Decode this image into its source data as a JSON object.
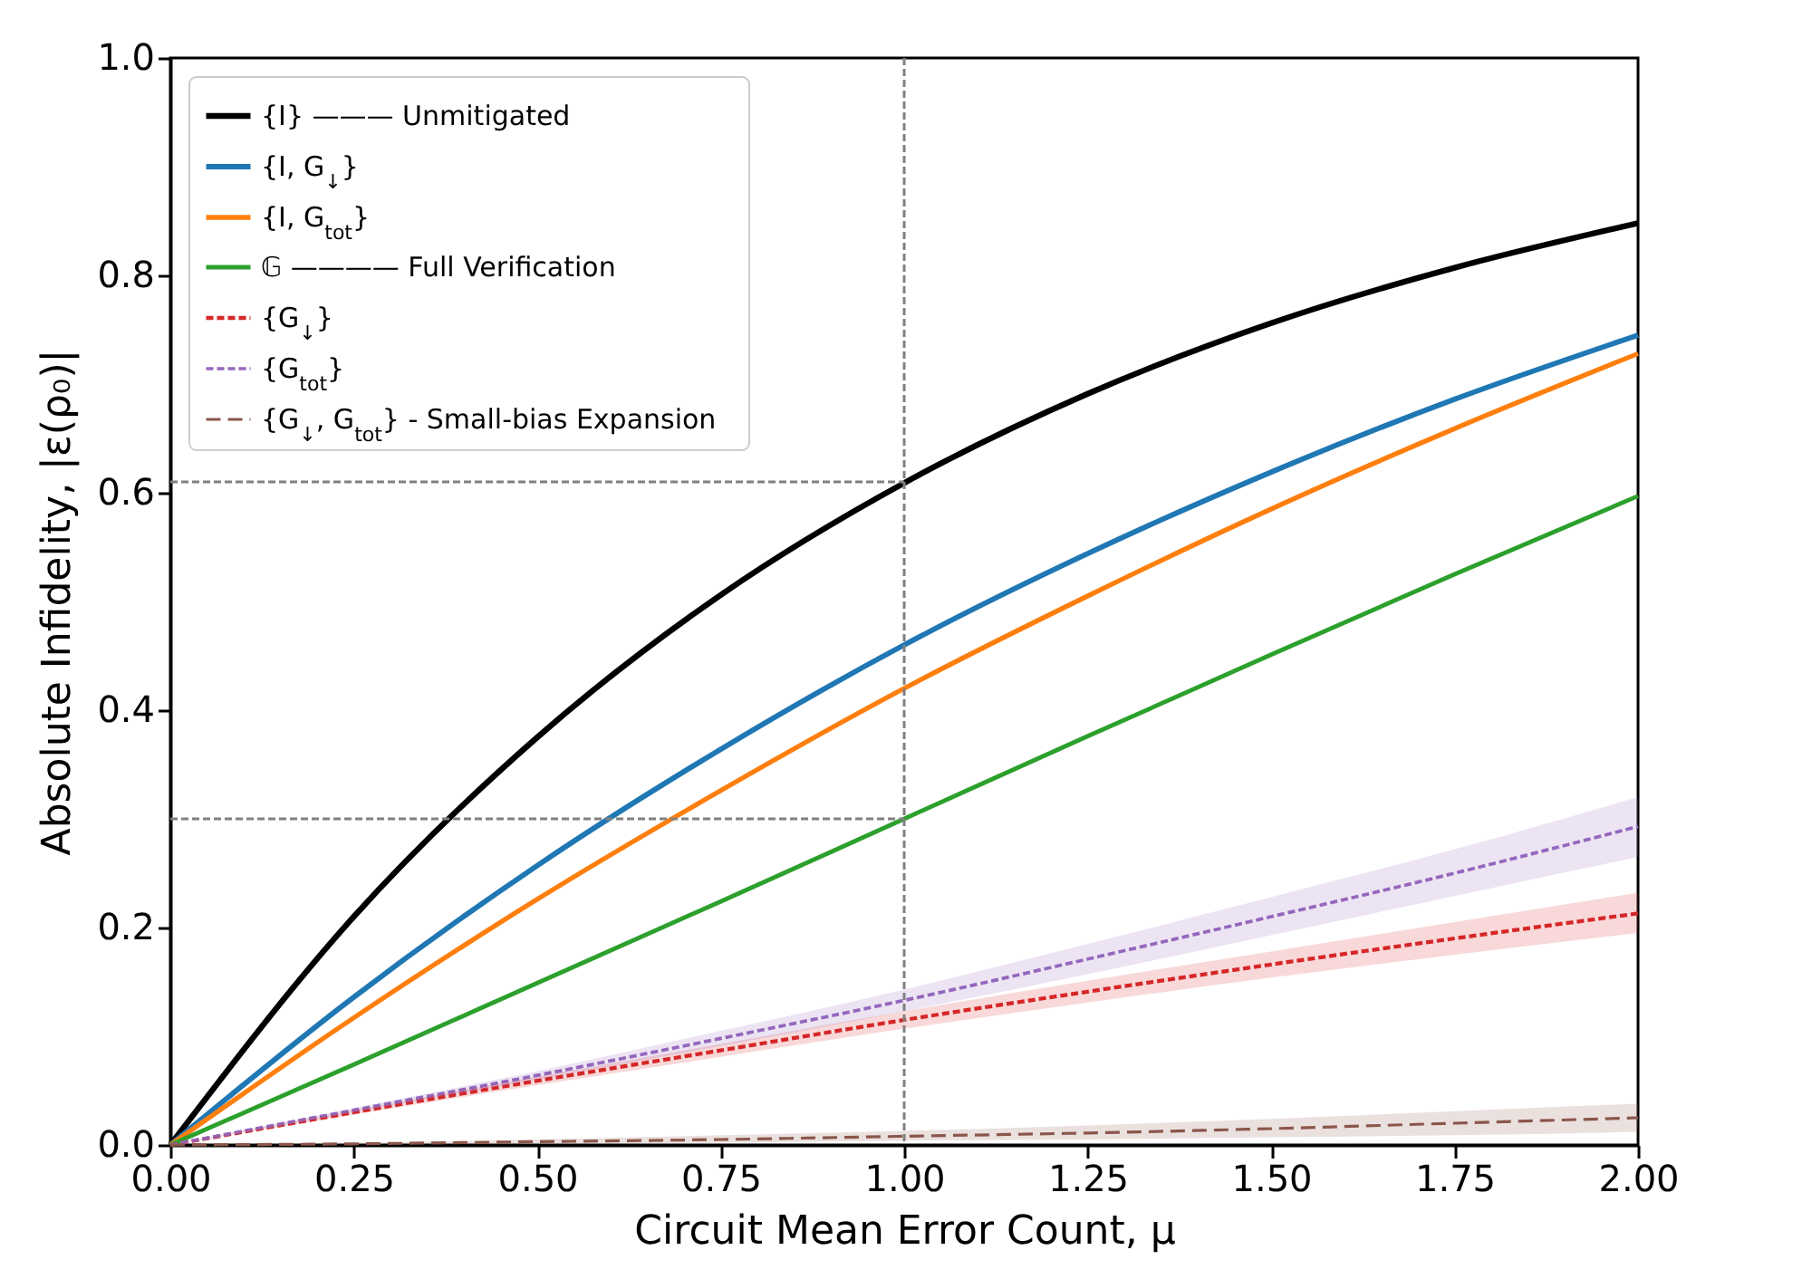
{
  "chart_data": {
    "type": "line",
    "xlabel": "Circuit Mean Error Count, μ",
    "ylabel": "Absolute Infidelity, |ε(ρ₀)|",
    "x": [
      0,
      0.25,
      0.5,
      0.75,
      1,
      1.25,
      1.5,
      1.75,
      2
    ],
    "series": [
      {
        "name": "{I}   ——— Unmitigated",
        "color": "#000000",
        "line_style": "solid",
        "values": [
          0,
          0.21,
          0.375,
          0.506,
          0.609,
          0.691,
          0.756,
          0.807,
          0.848
        ]
      },
      {
        "name": "{I, G$_{↓}$}",
        "color": "#1f77b4",
        "line_style": "solid",
        "values": [
          0,
          0.136,
          0.257,
          0.364,
          0.46,
          0.544,
          0.619,
          0.686,
          0.745
        ]
      },
      {
        "name": "{I, G$_{tot}$}",
        "color": "#ff7f0e",
        "line_style": "solid",
        "values": [
          0,
          0.117,
          0.226,
          0.326,
          0.42,
          0.505,
          0.585,
          0.659,
          0.728
        ]
      },
      {
        "name": "𝔾   ———— Full Verification",
        "color": "#2ca02c",
        "line_style": "solid",
        "values": [
          0,
          0.074,
          0.149,
          0.224,
          0.3,
          0.376,
          0.451,
          0.525,
          0.597
        ]
      },
      {
        "name": "{G$_{↓}$}",
        "color": "#d62728",
        "line_style": "dotted",
        "values": [
          0,
          0.03,
          0.059,
          0.087,
          0.115,
          0.141,
          0.166,
          0.19,
          0.213
        ],
        "lower": [
          0,
          0.028,
          0.055,
          0.081,
          0.107,
          0.131,
          0.154,
          0.175,
          0.195
        ],
        "upper": [
          0,
          0.032,
          0.063,
          0.093,
          0.123,
          0.151,
          0.178,
          0.205,
          0.232
        ]
      },
      {
        "name": "{G$_{tot}$}",
        "color": "#9467bd",
        "line_style": "dotted",
        "values": [
          0,
          0.032,
          0.064,
          0.098,
          0.133,
          0.171,
          0.21,
          0.25,
          0.293
        ],
        "lower": [
          0,
          0.03,
          0.06,
          0.091,
          0.123,
          0.157,
          0.193,
          0.229,
          0.265
        ],
        "upper": [
          0,
          0.034,
          0.068,
          0.105,
          0.143,
          0.185,
          0.228,
          0.272,
          0.32
        ]
      },
      {
        "name": "{G$_{↓}$, G$_{tot}$} - Small-bias Expansion",
        "color": "#8c564b",
        "line_style": "dashed",
        "values": [
          0,
          0.001,
          0.003,
          0.005,
          0.008,
          0.011,
          0.015,
          0.02,
          0.025
        ],
        "lower": [
          0,
          0.0005,
          0.001,
          0.002,
          0.004,
          0.005,
          0.007,
          0.009,
          0.012
        ],
        "upper": [
          0,
          0.002,
          0.005,
          0.009,
          0.013,
          0.018,
          0.024,
          0.031,
          0.038
        ]
      }
    ],
    "xlim": [
      0,
      2
    ],
    "ylim": [
      0,
      1
    ],
    "xticks": [
      {
        "value": 0,
        "label": "0.00"
      },
      {
        "value": 0.25,
        "label": "0.25"
      },
      {
        "value": 0.5,
        "label": "0.50"
      },
      {
        "value": 0.75,
        "label": "0.75"
      },
      {
        "value": 1,
        "label": "1.00"
      },
      {
        "value": 1.25,
        "label": "1.25"
      },
      {
        "value": 1.5,
        "label": "1.50"
      },
      {
        "value": 1.75,
        "label": "1.75"
      },
      {
        "value": 2,
        "label": "2.00"
      }
    ],
    "yticks": [
      {
        "value": 0,
        "label": "0.0"
      },
      {
        "value": 0.2,
        "label": "0.2"
      },
      {
        "value": 0.4,
        "label": "0.4"
      },
      {
        "value": 0.6,
        "label": "0.6"
      },
      {
        "value": 0.8,
        "label": "0.8"
      },
      {
        "value": 1,
        "label": "1.0"
      }
    ],
    "ref_lines": [
      {
        "axis": "x",
        "value": 1,
        "line_style": "dotted",
        "color": "#808080"
      },
      {
        "axis": "y",
        "value": 0.61,
        "line_style": "dotted",
        "color": "#808080"
      },
      {
        "axis": "y",
        "value": 0.3,
        "line_style": "dotted",
        "color": "#808080"
      }
    ],
    "legend": "top left",
    "grid": false
  }
}
